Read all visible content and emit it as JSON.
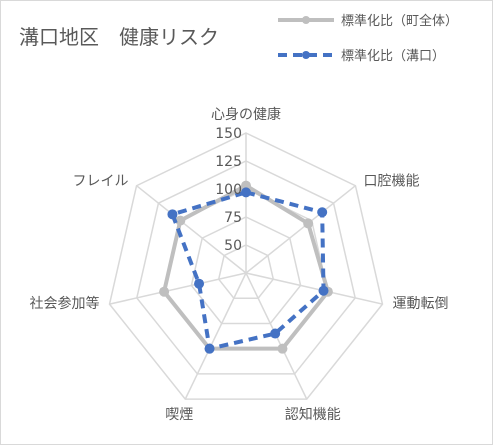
{
  "chart_data": {
    "type": "radar",
    "title": "溝口地区　健康リスク",
    "axes": [
      "心身の健康",
      "口腔機能",
      "運動転倒",
      "認知機能",
      "喫煙",
      "社会参加等",
      "フレイル"
    ],
    "rlim": [
      25,
      150
    ],
    "ticks": [
      50,
      75,
      100,
      125,
      150
    ],
    "tick_labels": [
      "50",
      "75",
      "100",
      "125",
      "150"
    ],
    "grid": true,
    "legend_position": "top-right",
    "series": [
      {
        "name": "標準化比（町全体）",
        "values": [
          103,
          96,
          100,
          100,
          100,
          100,
          100
        ],
        "color": "#bfbfbf",
        "dash": "solid"
      },
      {
        "name": "標準化比（溝口）",
        "values": [
          97,
          112,
          96,
          85,
          100,
          68,
          109
        ],
        "color": "#4472c4",
        "dash": "dashed"
      }
    ]
  }
}
